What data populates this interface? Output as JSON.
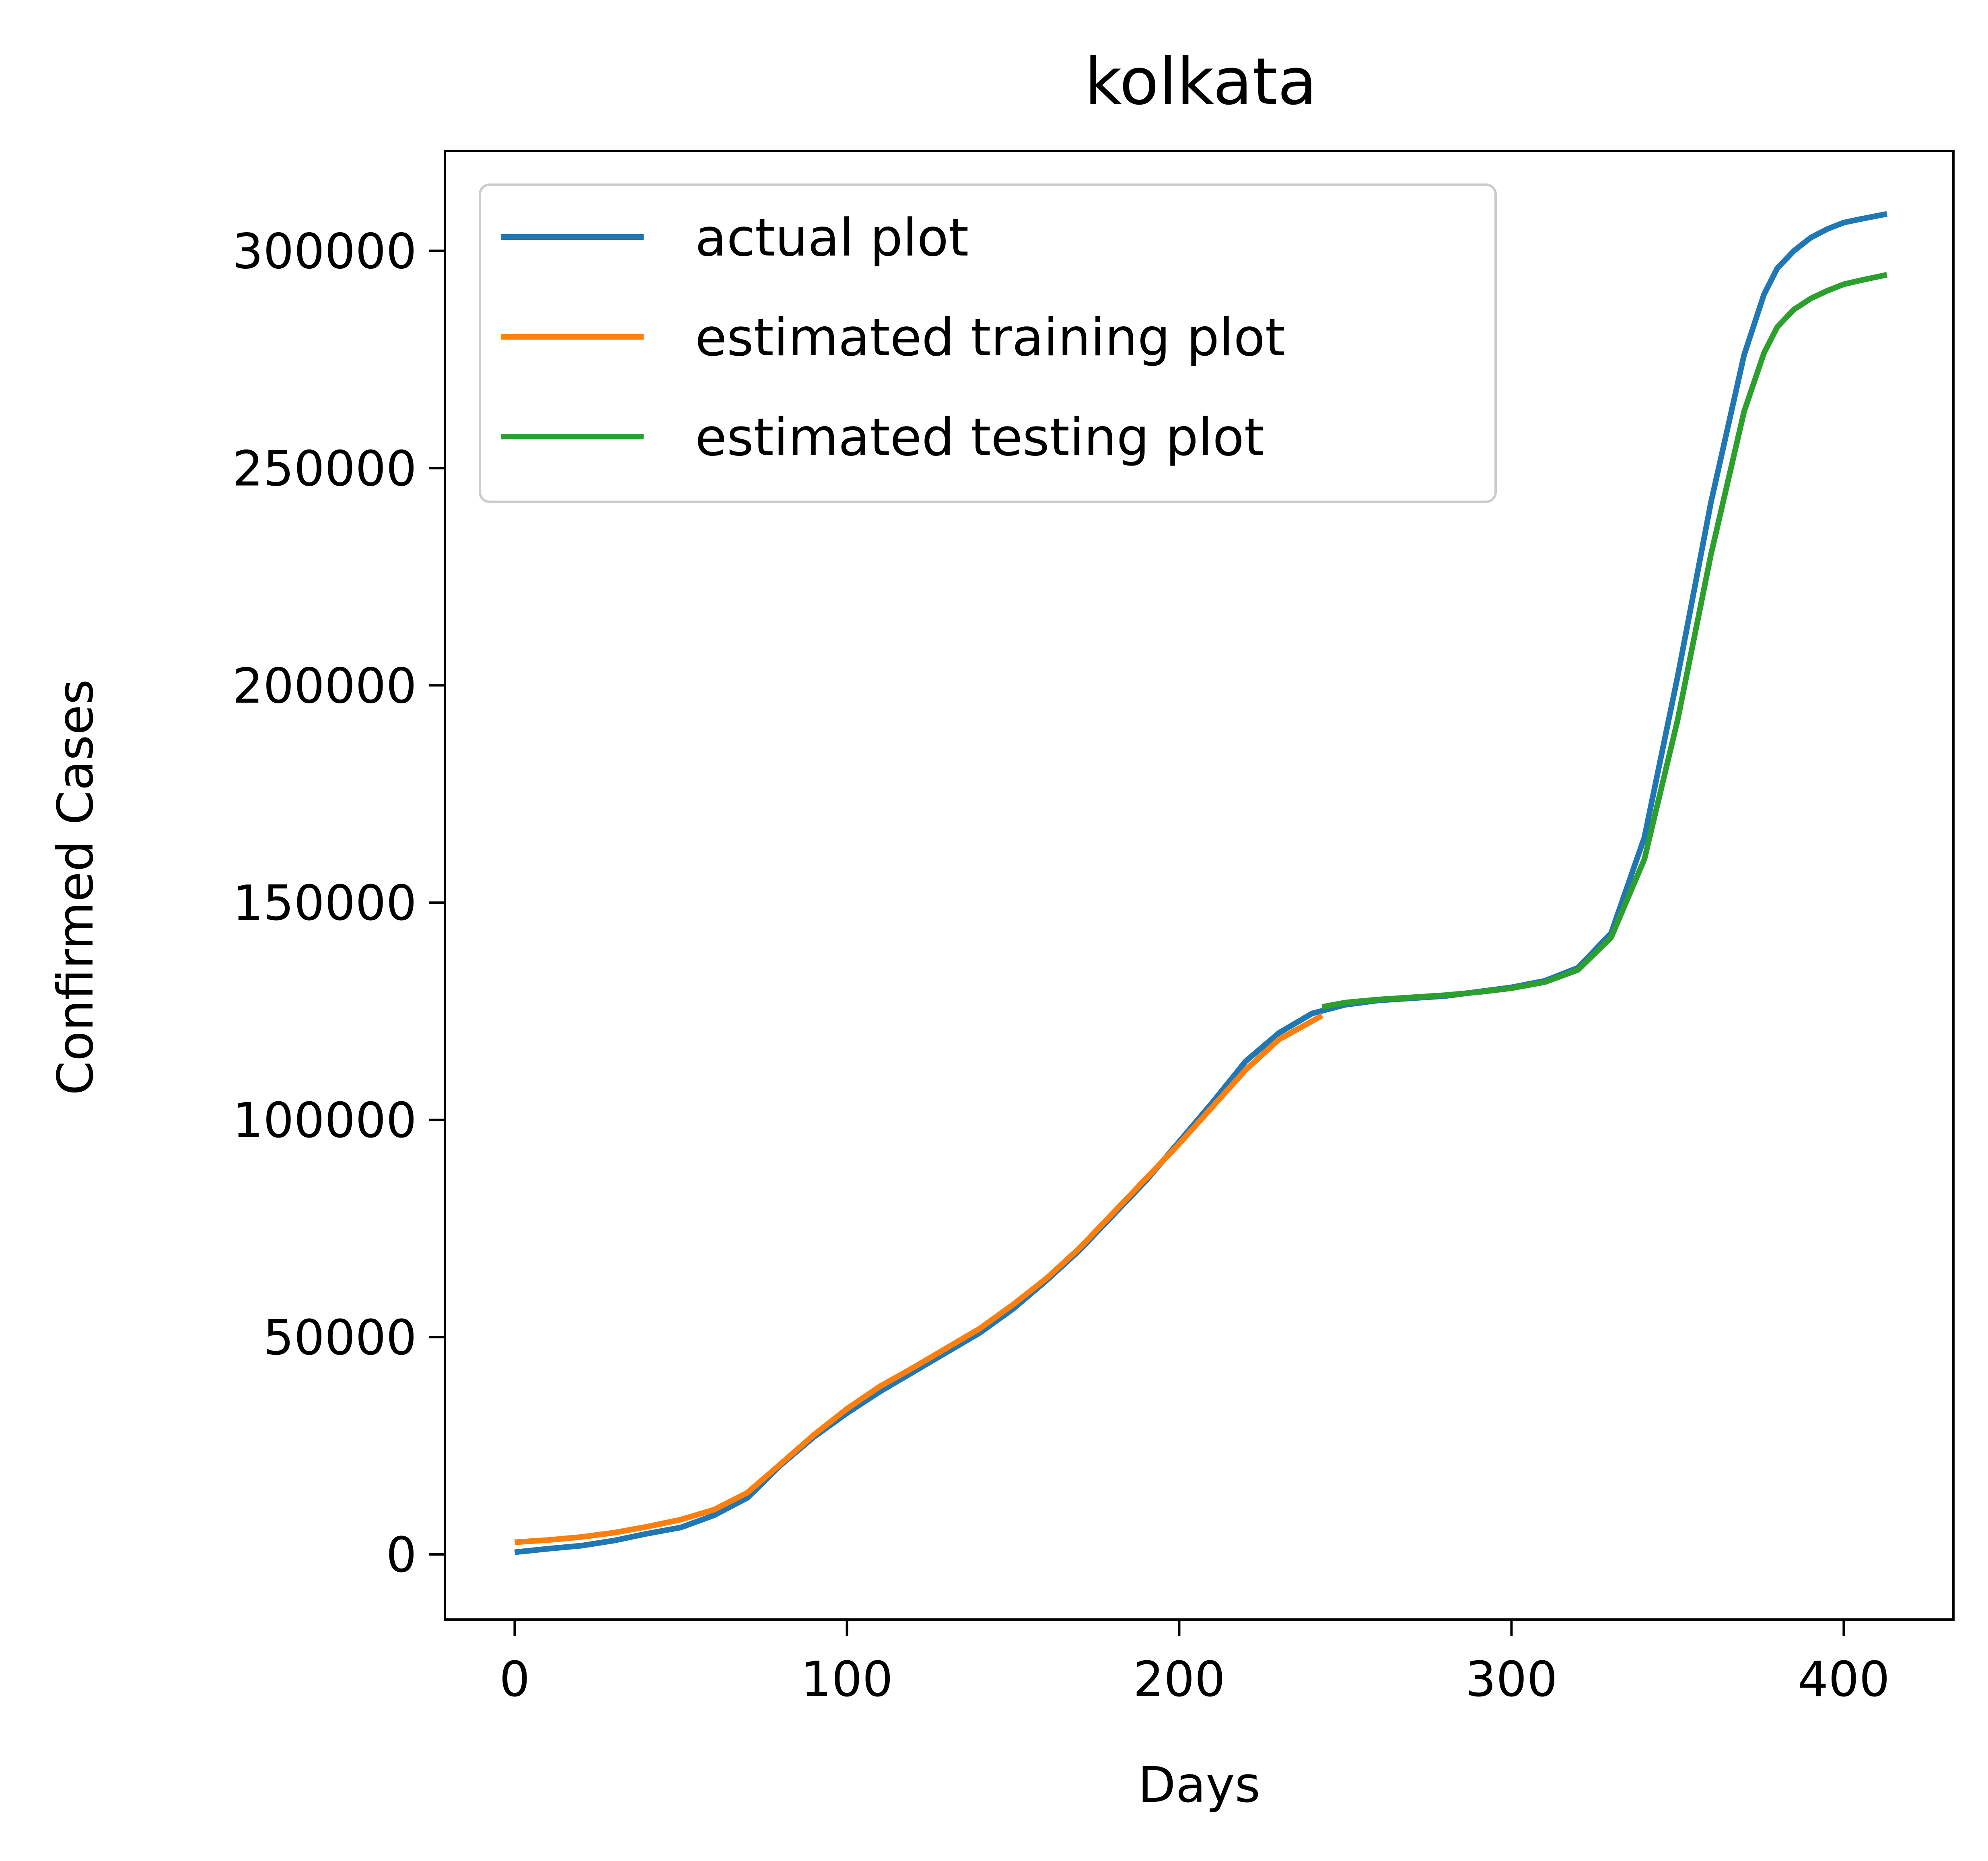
{
  "chart_data": {
    "type": "line",
    "title": "kolkata",
    "xlabel": "Days",
    "ylabel": "Confirmed Cases",
    "xlim": [
      -21,
      433
    ],
    "ylim": [
      -15000,
      323000
    ],
    "xticks": [
      0,
      100,
      200,
      300,
      400
    ],
    "xtick_labels": [
      "0",
      "100",
      "200",
      "300",
      "400"
    ],
    "yticks": [
      0,
      50000,
      100000,
      150000,
      200000,
      250000,
      300000
    ],
    "ytick_labels": [
      "0",
      "50000",
      "100000",
      "150000",
      "200000",
      "250000",
      "300000"
    ],
    "grid": false,
    "legend_position": "upper-left",
    "series": [
      {
        "name": "actual plot",
        "color": "#1f77b4",
        "x": [
          0,
          10,
          20,
          30,
          40,
          50,
          60,
          70,
          80,
          90,
          100,
          110,
          120,
          130,
          140,
          150,
          160,
          170,
          180,
          190,
          200,
          210,
          220,
          230,
          240,
          250,
          260,
          270,
          280,
          290,
          300,
          310,
          320,
          330,
          340,
          350,
          360,
          370,
          376,
          380,
          385,
          390,
          395,
          400,
          405,
          413
        ],
        "y": [
          500,
          1300,
          2000,
          3200,
          4800,
          6200,
          9000,
          13000,
          20500,
          27000,
          32500,
          37500,
          42000,
          46500,
          51000,
          56500,
          63000,
          70000,
          78000,
          86000,
          95000,
          104000,
          113500,
          120000,
          124500,
          126500,
          127500,
          128000,
          128500,
          129500,
          130500,
          132000,
          135000,
          143000,
          165000,
          202000,
          242000,
          276000,
          290000,
          296000,
          300000,
          303000,
          305000,
          306500,
          307300,
          308500
        ]
      },
      {
        "name": "estimated training plot",
        "color": "#ff7f0e",
        "x": [
          0,
          10,
          20,
          30,
          40,
          50,
          60,
          70,
          80,
          90,
          100,
          110,
          120,
          130,
          140,
          150,
          160,
          170,
          180,
          190,
          200,
          210,
          220,
          230,
          243
        ],
        "y": [
          2800,
          3300,
          4000,
          5000,
          6400,
          8000,
          10300,
          14200,
          20800,
          27500,
          33500,
          38700,
          43000,
          47500,
          52000,
          57500,
          63500,
          70500,
          78500,
          86500,
          94500,
          103000,
          111500,
          118500,
          124000
        ]
      },
      {
        "name": "estimated testing plot",
        "color": "#2ca02c",
        "x": [
          243,
          250,
          260,
          270,
          280,
          290,
          300,
          310,
          320,
          330,
          340,
          350,
          360,
          370,
          376,
          380,
          385,
          390,
          395,
          400,
          405,
          413
        ],
        "y": [
          126000,
          127000,
          127700,
          128200,
          128700,
          129400,
          130300,
          131700,
          134500,
          142000,
          160000,
          192000,
          230000,
          263000,
          276500,
          282500,
          286500,
          289000,
          290800,
          292300,
          293200,
          294500
        ]
      }
    ]
  }
}
